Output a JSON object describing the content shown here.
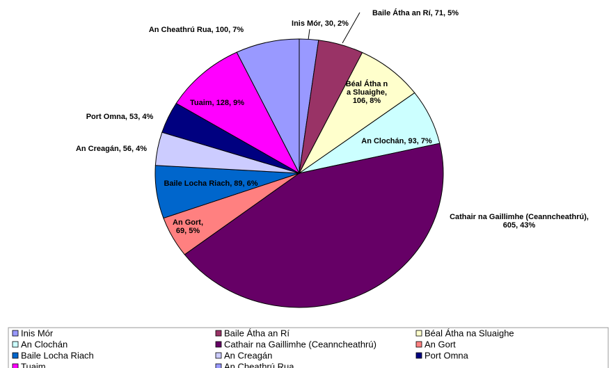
{
  "chart_data": {
    "type": "pie",
    "categories": [
      "Inis Mór",
      "Baile Átha an Rí",
      "Béal Átha na Sluaighe",
      "An Clochán",
      "Cathair na Gaillimhe (Ceanncheathrú)",
      "An Gort",
      "Baile Locha Riach",
      "An Creagán",
      "Port Omna",
      "Tuaim",
      "An Cheathrú Rua"
    ],
    "values": [
      30,
      71,
      106,
      93,
      605,
      69,
      89,
      56,
      53,
      128,
      100
    ],
    "value_labels": [
      "Inis Mór, 30, 2%",
      "Baile Átha an Rí, 71, 5%",
      "Béal Átha na Sluaighe, 106, 8%",
      "An Clochán, 93, 7%",
      "Cathair na Gaillimhe (Ceanncheathrú), 605, 43%",
      "An Gort, 69, 5%",
      "Baile Locha Riach, 89, 6%",
      "An Creagán, 56, 4%",
      "Port Omna, 53, 4%",
      "Tuaim, 128, 9%",
      "An Cheathrú Rua, 100, 7%"
    ],
    "colors": [
      "#9999ff",
      "#993366",
      "#ffffcc",
      "#ccffff",
      "#660066",
      "#ff8080",
      "#0066cc",
      "#ccccff",
      "#000080",
      "#ff00ff",
      "#9999ff"
    ],
    "legend": "bottom"
  }
}
